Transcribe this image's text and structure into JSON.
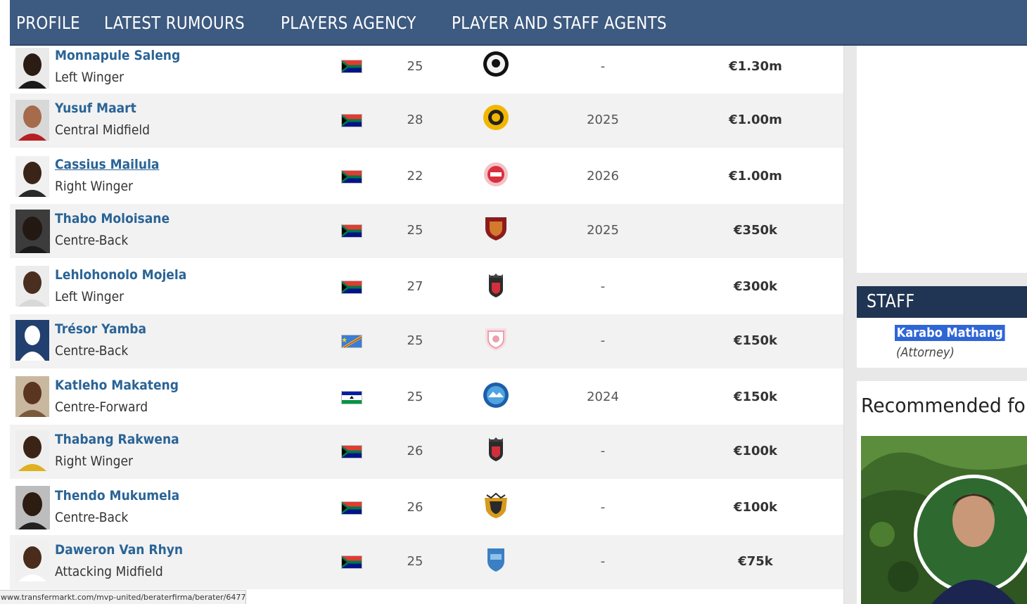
{
  "nav": {
    "items": [
      "PROFILE",
      "LATEST RUMOURS",
      "PLAYERS AGENCY",
      "PLAYER AND STAFF AGENTS"
    ]
  },
  "players": [
    {
      "name": "Monnapule Saleng",
      "position": "Left Winger",
      "nationality": "South Africa",
      "age": "25",
      "club_icon": "orlando-pirates-crest",
      "contract": "-",
      "market_value": "€1.30m"
    },
    {
      "name": "Yusuf Maart",
      "position": "Central Midfield",
      "nationality": "South Africa",
      "age": "28",
      "club_icon": "kaizer-chiefs-crest",
      "contract": "2025",
      "market_value": "€1.00m"
    },
    {
      "name": "Cassius Mailula",
      "position": "Right Winger",
      "nationality": "South Africa",
      "age": "22",
      "club_icon": "toronto-fc-crest",
      "contract": "2026",
      "market_value": "€1.00m"
    },
    {
      "name": "Thabo Moloisane",
      "position": "Centre-Back",
      "nationality": "South Africa",
      "age": "25",
      "club_icon": "stellenbosch-crest",
      "contract": "2025",
      "market_value": "€350k"
    },
    {
      "name": "Lehlohonolo Mojela",
      "position": "Left Winger",
      "nationality": "South Africa",
      "age": "27",
      "club_icon": "ts-galaxy-crest",
      "contract": "-",
      "market_value": "€300k"
    },
    {
      "name": "Trésor Yamba",
      "position": "Centre-Back",
      "nationality": "DR Congo",
      "age": "25",
      "club_icon": "club-crest",
      "contract": "-",
      "market_value": "€150k"
    },
    {
      "name": "Katleho Makateng",
      "position": "Centre-Forward",
      "nationality": "Lesotho",
      "age": "25",
      "club_icon": "club-crest-round",
      "contract": "2024",
      "market_value": "€150k"
    },
    {
      "name": "Thabang Rakwena",
      "position": "Right Winger",
      "nationality": "South Africa",
      "age": "26",
      "club_icon": "ts-galaxy-crest",
      "contract": "-",
      "market_value": "€100k"
    },
    {
      "name": "Thendo Mukumela",
      "position": "Centre-Back",
      "nationality": "South Africa",
      "age": "26",
      "club_icon": "golden-arrows-crest",
      "contract": "-",
      "market_value": "€100k"
    },
    {
      "name": "Daweron Van Rhyn",
      "position": "Attacking Midfield",
      "nationality": "South Africa",
      "age": "25",
      "club_icon": "club-shield-crest",
      "contract": "-",
      "market_value": "€75k"
    }
  ],
  "staff": {
    "title": "STAFF",
    "name": "Karabo Mathang",
    "role": "(Attorney)"
  },
  "recommended": {
    "title": "Recommended for"
  },
  "status_bar": {
    "url": "www.transfermarkt.com/mvp-united/beraterfirma/berater/6477#"
  },
  "colors": {
    "nav_bg": "#3d5a80",
    "staff_header_bg": "#1f3553",
    "link": "#2a6496",
    "selection": "#2f66d6"
  }
}
